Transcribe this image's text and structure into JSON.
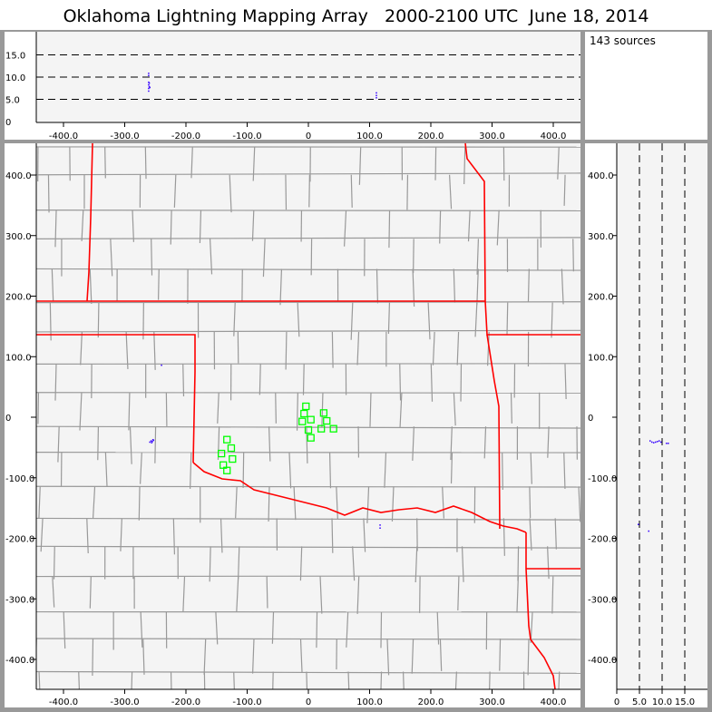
{
  "title": "Oklahoma Lightning Mapping Array   2000-2100 UTC  June 18, 2014",
  "source_count": "143 sources",
  "colors": {
    "background": "#f4f4f4",
    "state_border": "#ff0000",
    "county_border": "#999999",
    "station": "#00ff00",
    "source": "#3300ff"
  },
  "chart_data": [
    {
      "type": "scatter",
      "view": "east-west vs altitude",
      "xlim": [
        -450,
        440
      ],
      "ylim": [
        0,
        20
      ],
      "x_ticks": [
        "-400.0",
        "-300.0",
        "-200.0",
        "-100.0",
        "0",
        "100.0",
        "200.0",
        "300.0",
        "400.0"
      ],
      "x_tick_values": [
        -400,
        -300,
        -200,
        -100,
        0,
        100,
        200,
        300,
        400
      ],
      "y_ticks": [
        "0",
        "5.0",
        "10.0",
        "15.0"
      ],
      "y_tick_values": [
        0,
        5,
        10,
        15
      ],
      "dashed_grid_y": [
        5,
        10,
        15
      ],
      "points": [
        [
          -262,
          7.0
        ],
        [
          -262,
          7.6
        ],
        [
          -261,
          8.0
        ],
        [
          -262,
          8.4
        ],
        [
          -261,
          8.8
        ],
        [
          -262,
          9.0
        ],
        [
          -260,
          7.8
        ],
        [
          -262,
          10.5
        ],
        [
          -262,
          11.0
        ],
        [
          110,
          5.5
        ],
        [
          110,
          6.0
        ],
        [
          110,
          6.6
        ]
      ]
    },
    {
      "type": "scatter",
      "view": "plan",
      "xlim": [
        -450,
        440
      ],
      "ylim": [
        -450,
        445
      ],
      "x_ticks": [
        "-400.0",
        "-300.0",
        "-200.0",
        "-100.0",
        "0",
        "100.0",
        "200.0",
        "300.0",
        "400.0"
      ],
      "x_tick_values": [
        -400,
        -300,
        -200,
        -100,
        0,
        100,
        200,
        300,
        400
      ],
      "y_ticks": [
        "400.0",
        "300.0",
        "200.0",
        "100.0",
        "0",
        "-100.0",
        "-200.0",
        "-300.0",
        "-400.0"
      ],
      "y_tick_values": [
        400,
        300,
        200,
        100,
        0,
        -100,
        -200,
        -300,
        -400
      ],
      "stations": [
        [
          -4,
          18
        ],
        [
          -7,
          6
        ],
        [
          4,
          -4
        ],
        [
          -10,
          -7
        ],
        [
          25,
          7
        ],
        [
          30,
          -6
        ],
        [
          41,
          -19
        ],
        [
          21,
          -19
        ],
        [
          0,
          -21
        ],
        [
          4,
          -34
        ],
        [
          -133,
          -37
        ],
        [
          -126,
          -51
        ],
        [
          -142,
          -60
        ],
        [
          -124,
          -69
        ],
        [
          -139,
          -79
        ],
        [
          -133,
          -88
        ]
      ],
      "points": [
        [
          -258,
          -38
        ],
        [
          -256,
          -39
        ],
        [
          -254,
          -37
        ],
        [
          -260,
          -40
        ],
        [
          -255,
          -36
        ],
        [
          -257,
          -41
        ],
        [
          -241,
          87
        ],
        [
          116,
          -177
        ],
        [
          116,
          -182
        ]
      ]
    },
    {
      "type": "scatter",
      "view": "altitude vs north-south",
      "xlim": [
        0,
        20
      ],
      "ylim": [
        -450,
        445
      ],
      "x_ticks": [
        "0",
        "5.0",
        "10.0",
        "15.0"
      ],
      "x_tick_values": [
        0,
        5,
        10,
        15
      ],
      "y_ticks": [
        "400.0",
        "300.0",
        "200.0",
        "100.0",
        "0",
        "-100.0",
        "-200.0",
        "-300.0",
        "-400.0"
      ],
      "y_tick_values": [
        400,
        300,
        200,
        100,
        0,
        -100,
        -200,
        -300,
        -400
      ],
      "dashed_grid_x": [
        5,
        10,
        15
      ],
      "points": [
        [
          7.2,
          -38
        ],
        [
          7.6,
          -40
        ],
        [
          8.0,
          -41
        ],
        [
          8.4,
          -40
        ],
        [
          8.8,
          -39
        ],
        [
          9.2,
          -38
        ],
        [
          9.6,
          -40
        ],
        [
          10.8,
          -42
        ],
        [
          11.2,
          -42
        ],
        [
          4.6,
          -176
        ],
        [
          6.9,
          -187
        ]
      ]
    }
  ]
}
